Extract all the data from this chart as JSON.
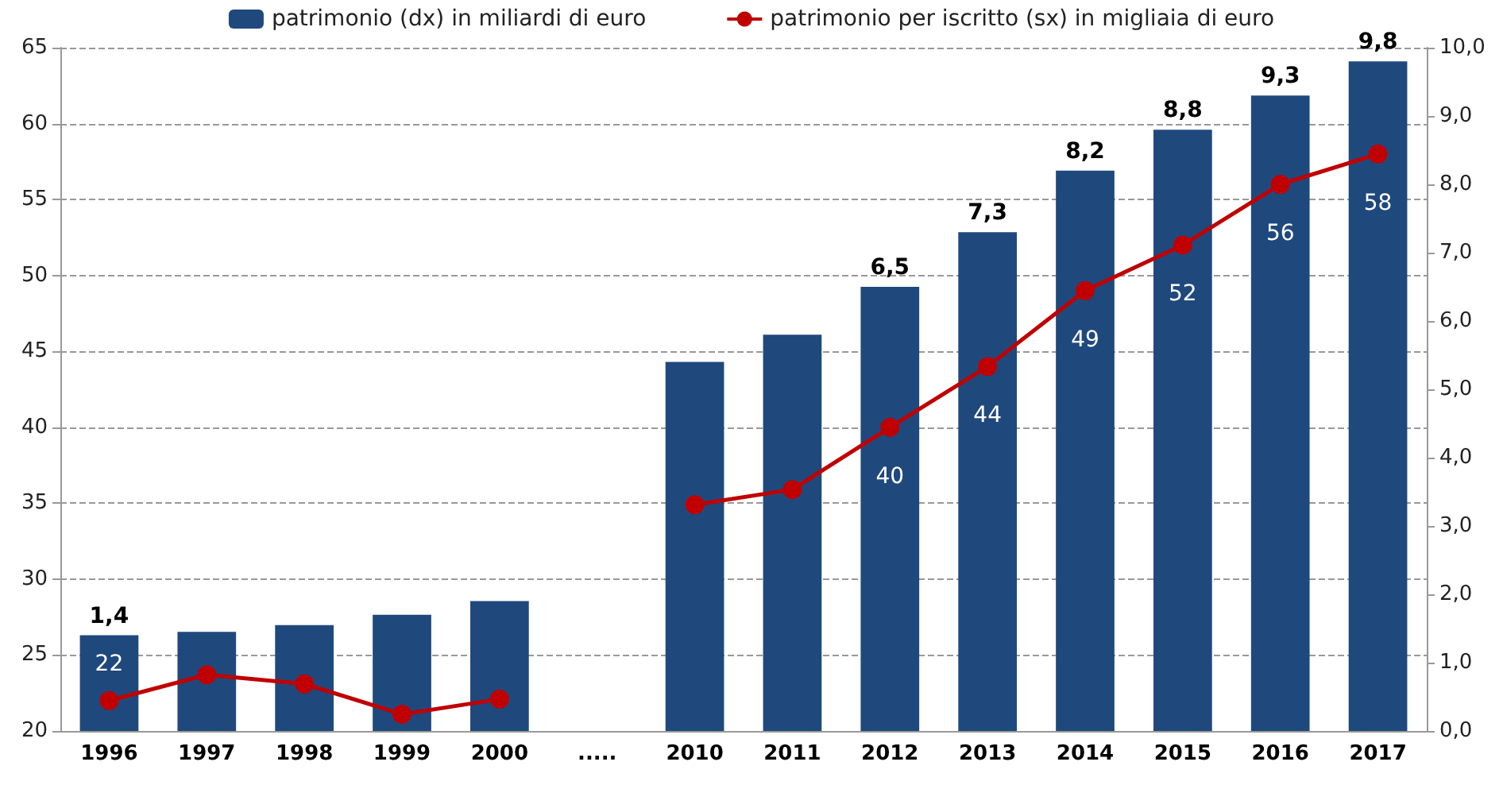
{
  "chart_data": {
    "type": "bar",
    "categories": [
      "1996",
      "1997",
      "1998",
      "1999",
      "2000",
      ".....",
      "2010",
      "2011",
      "2012",
      "2013",
      "2014",
      "2015",
      "2016",
      "2017"
    ],
    "series": [
      {
        "type": "bar",
        "name": "patrimonio (dx) in miliardi di euro",
        "color": "#1f497d",
        "axis": "y2",
        "values": [
          1.4,
          1.45,
          1.55,
          1.7,
          1.9,
          null,
          5.4,
          5.8,
          6.5,
          7.3,
          8.2,
          8.8,
          9.3,
          9.8
        ],
        "value_labels": [
          "1,4",
          null,
          null,
          null,
          null,
          null,
          null,
          null,
          "6,5",
          "7,3",
          "8,2",
          "8,8",
          "9,3",
          "9,8"
        ]
      },
      {
        "type": "line",
        "name": "patrimonio per iscritto (sx) in migliaia di euro",
        "color": "#c00000",
        "marker": "circle",
        "values": [
          22,
          23.7,
          23.1,
          21.1,
          22.1,
          null,
          34.9,
          35.9,
          40,
          44,
          49,
          52,
          56,
          58
        ],
        "value_labels": [
          "22",
          null,
          null,
          null,
          null,
          null,
          null,
          null,
          "40",
          "44",
          "49",
          "52",
          "56",
          "58"
        ]
      }
    ],
    "ylim": [
      20,
      65
    ],
    "yticks": [
      20,
      25,
      30,
      35,
      40,
      45,
      50,
      55,
      60,
      65
    ],
    "y2lim": [
      0,
      10
    ],
    "y2ticks": [
      {
        "value": 0,
        "label": "0,0"
      },
      {
        "value": 1,
        "label": "1,0"
      },
      {
        "value": 2,
        "label": "2,0"
      },
      {
        "value": 3,
        "label": "3,0"
      },
      {
        "value": 4,
        "label": "4,0"
      },
      {
        "value": 5,
        "label": "5,0"
      },
      {
        "value": 6,
        "label": "6,0"
      },
      {
        "value": 7,
        "label": "7,0"
      },
      {
        "value": 8,
        "label": "8,0"
      },
      {
        "value": 9,
        "label": "9,0"
      },
      {
        "value": 10,
        "label": "10,0"
      }
    ],
    "grid": "y",
    "legend": "top"
  }
}
